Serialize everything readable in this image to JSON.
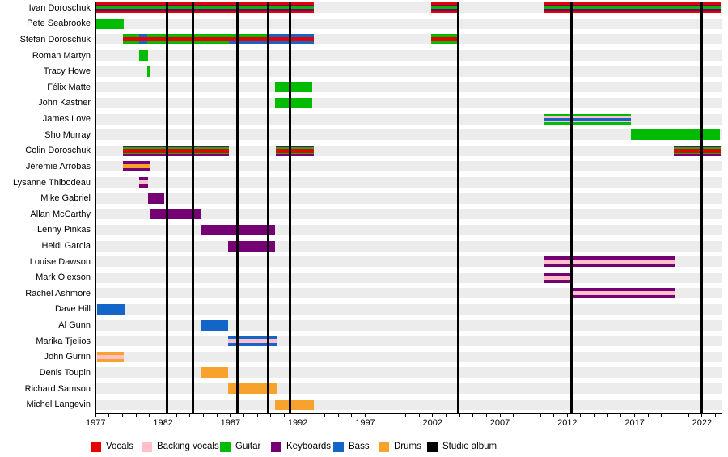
{
  "chart_data": {
    "type": "timeline",
    "x_axis": {
      "start_year": 1977,
      "end_year": 2023.5,
      "minor_tick_interval": 1,
      "labeled_years": [
        1977,
        1982,
        1987,
        1992,
        1997,
        2002,
        2007,
        2012,
        2017,
        2022
      ]
    },
    "roles": {
      "vocals": "#e60000",
      "backing_vocals": "#ffc0cb",
      "guitar": "#00bb00",
      "keyboards": "#740074",
      "bass": "#1465c8",
      "drums": "#f7a22d",
      "studio_album": "#000000"
    },
    "legend": [
      {
        "label": "Vocals",
        "role": "vocals"
      },
      {
        "label": "Backing vocals",
        "role": "backing_vocals"
      },
      {
        "label": "Guitar",
        "role": "guitar"
      },
      {
        "label": "Keyboards",
        "role": "keyboards"
      },
      {
        "label": "Bass",
        "role": "bass"
      },
      {
        "label": "Drums",
        "role": "drums"
      },
      {
        "label": "Studio album",
        "role": "studio_album"
      }
    ],
    "studio_album_years": [
      1982.3,
      1984.2,
      1987.5,
      1989.8,
      1991.4,
      2003.9,
      2012.3,
      2022.0
    ],
    "members": [
      {
        "name": "Ivan Doroschuk",
        "bars": [
          {
            "start": 1977.05,
            "end": 1993.2,
            "stripes": [
              [
                "vocals",
                3
              ],
              [
                "keyboards",
                2
              ],
              [
                "guitar",
                3
              ],
              [
                "keyboards",
                2
              ],
              [
                "vocals",
                3
              ]
            ]
          },
          {
            "start": 2001.9,
            "end": 2003.9,
            "stripes": [
              [
                "vocals",
                3
              ],
              [
                "keyboards",
                2
              ],
              [
                "guitar",
                3
              ],
              [
                "keyboards",
                2
              ],
              [
                "vocals",
                3
              ]
            ]
          },
          {
            "start": 2010.25,
            "end": 2023.4,
            "stripes": [
              [
                "vocals",
                3
              ],
              [
                "keyboards",
                2
              ],
              [
                "guitar",
                3
              ],
              [
                "keyboards",
                2
              ],
              [
                "vocals",
                3
              ]
            ]
          }
        ]
      },
      {
        "name": "Pete Seabrooke",
        "bars": [
          {
            "start": 1977.05,
            "end": 1979.1,
            "stripes": [
              [
                "guitar",
                1
              ]
            ]
          }
        ]
      },
      {
        "name": "Stefan Doroschuk",
        "bars": [
          {
            "start": 1979.0,
            "end": 1980.2,
            "stripes": [
              [
                "guitar",
                4
              ],
              [
                "vocals",
                5
              ],
              [
                "guitar",
                4
              ]
            ]
          },
          {
            "start": 1980.2,
            "end": 1980.85,
            "stripes": [
              [
                "bass",
                4
              ],
              [
                "vocals",
                5
              ],
              [
                "bass",
                4
              ]
            ]
          },
          {
            "start": 1980.85,
            "end": 1986.9,
            "stripes": [
              [
                "guitar",
                4
              ],
              [
                "vocals",
                5
              ],
              [
                "guitar",
                4
              ]
            ]
          },
          {
            "start": 1986.9,
            "end": 1989.9,
            "stripes": [
              [
                "guitar",
                4
              ],
              [
                "vocals",
                5
              ],
              [
                "bass",
                4
              ]
            ]
          },
          {
            "start": 1989.9,
            "end": 1993.2,
            "stripes": [
              [
                "bass",
                4
              ],
              [
                "vocals",
                5
              ],
              [
                "bass",
                4
              ]
            ]
          },
          {
            "start": 2001.9,
            "end": 2003.9,
            "stripes": [
              [
                "guitar",
                4
              ],
              [
                "vocals",
                5
              ],
              [
                "guitar",
                4
              ]
            ]
          }
        ]
      },
      {
        "name": "Roman Martyn",
        "bars": [
          {
            "start": 1980.2,
            "end": 1980.9,
            "stripes": [
              [
                "guitar",
                1
              ]
            ]
          }
        ]
      },
      {
        "name": "Tracy Howe",
        "bars": [
          {
            "start": 1980.85,
            "end": 1981.0,
            "stripes": [
              [
                "guitar",
                1
              ]
            ]
          }
        ]
      },
      {
        "name": "Félix Matte",
        "bars": [
          {
            "start": 1990.3,
            "end": 1993.1,
            "stripes": [
              [
                "guitar",
                1
              ]
            ]
          }
        ]
      },
      {
        "name": "John Kastner",
        "bars": [
          {
            "start": 1990.3,
            "end": 1993.1,
            "stripes": [
              [
                "guitar",
                1
              ]
            ]
          }
        ]
      },
      {
        "name": "James Love",
        "bars": [
          {
            "start": 2010.25,
            "end": 2016.7,
            "stripes": [
              [
                "guitar",
                3
              ],
              [
                "backing_vocals",
                2
              ],
              [
                "bass",
                3
              ],
              [
                "backing_vocals",
                2
              ],
              [
                "guitar",
                3
              ]
            ]
          }
        ]
      },
      {
        "name": "Sho Murray",
        "bars": [
          {
            "start": 2016.7,
            "end": 2023.35,
            "stripes": [
              [
                "guitar",
                1
              ]
            ]
          }
        ]
      },
      {
        "name": "Colin Doroschuk",
        "bars": [
          {
            "start": 1979.0,
            "end": 1986.9,
            "stripes": [
              [
                "keyboards",
                2
              ],
              [
                "guitar",
                2
              ],
              [
                "vocals",
                5
              ],
              [
                "guitar",
                2
              ],
              [
                "keyboards",
                2
              ]
            ]
          },
          {
            "start": 1990.35,
            "end": 1993.2,
            "stripes": [
              [
                "keyboards",
                2
              ],
              [
                "guitar",
                2
              ],
              [
                "vocals",
                5
              ],
              [
                "guitar",
                2
              ],
              [
                "keyboards",
                2
              ]
            ]
          },
          {
            "start": 2019.9,
            "end": 2023.4,
            "stripes": [
              [
                "keyboards",
                2
              ],
              [
                "guitar",
                2
              ],
              [
                "vocals",
                5
              ],
              [
                "guitar",
                2
              ],
              [
                "keyboards",
                2
              ]
            ]
          }
        ]
      },
      {
        "name": "Jérémie Arrobas",
        "bars": [
          {
            "start": 1979.0,
            "end": 1981.0,
            "stripes": [
              [
                "keyboards",
                4
              ],
              [
                "drums",
                5
              ],
              [
                "keyboards",
                4
              ]
            ]
          }
        ]
      },
      {
        "name": "Lysanne Thibodeau",
        "bars": [
          {
            "start": 1980.2,
            "end": 1980.9,
            "stripes": [
              [
                "keyboards",
                4
              ],
              [
                "backing_vocals",
                5
              ],
              [
                "keyboards",
                4
              ]
            ]
          }
        ]
      },
      {
        "name": "Mike Gabriel",
        "bars": [
          {
            "start": 1980.9,
            "end": 1982.1,
            "stripes": [
              [
                "keyboards",
                1
              ]
            ]
          }
        ]
      },
      {
        "name": "Allan McCarthy",
        "bars": [
          {
            "start": 1981.0,
            "end": 1984.8,
            "stripes": [
              [
                "keyboards",
                1
              ]
            ]
          }
        ]
      },
      {
        "name": "Lenny Pinkas",
        "bars": [
          {
            "start": 1984.8,
            "end": 1990.3,
            "stripes": [
              [
                "keyboards",
                1
              ]
            ]
          }
        ]
      },
      {
        "name": "Heidi Garcia",
        "bars": [
          {
            "start": 1986.8,
            "end": 1990.3,
            "stripes": [
              [
                "keyboards",
                1
              ]
            ]
          }
        ]
      },
      {
        "name": "Louise Dawson",
        "bars": [
          {
            "start": 2010.25,
            "end": 2019.95,
            "stripes": [
              [
                "keyboards",
                4
              ],
              [
                "backing_vocals",
                5
              ],
              [
                "keyboards",
                4
              ]
            ]
          }
        ]
      },
      {
        "name": "Mark Olexson",
        "bars": [
          {
            "start": 2010.25,
            "end": 2012.3,
            "stripes": [
              [
                "keyboards",
                4
              ],
              [
                "backing_vocals",
                5
              ],
              [
                "keyboards",
                4
              ]
            ]
          }
        ]
      },
      {
        "name": "Rachel Ashmore",
        "bars": [
          {
            "start": 2012.3,
            "end": 2019.95,
            "stripes": [
              [
                "keyboards",
                4
              ],
              [
                "backing_vocals",
                5
              ],
              [
                "keyboards",
                4
              ]
            ]
          }
        ]
      },
      {
        "name": "Dave Hill",
        "bars": [
          {
            "start": 1977.1,
            "end": 1979.15,
            "stripes": [
              [
                "bass",
                1
              ]
            ]
          }
        ]
      },
      {
        "name": "Al Gunn",
        "bars": [
          {
            "start": 1984.8,
            "end": 1986.8,
            "stripes": [
              [
                "bass",
                1
              ]
            ]
          }
        ]
      },
      {
        "name": "Marika Tjelios",
        "bars": [
          {
            "start": 1986.8,
            "end": 1990.4,
            "stripes": [
              [
                "bass",
                4
              ],
              [
                "backing_vocals",
                5
              ],
              [
                "bass",
                4
              ]
            ]
          }
        ]
      },
      {
        "name": "John Gurrin",
        "bars": [
          {
            "start": 1977.1,
            "end": 1979.1,
            "stripes": [
              [
                "drums",
                4
              ],
              [
                "backing_vocals",
                5
              ],
              [
                "drums",
                4
              ]
            ]
          }
        ]
      },
      {
        "name": "Denis Toupin",
        "bars": [
          {
            "start": 1984.8,
            "end": 1986.85,
            "stripes": [
              [
                "drums",
                1
              ]
            ]
          }
        ]
      },
      {
        "name": "Richard Samson",
        "bars": [
          {
            "start": 1986.8,
            "end": 1990.4,
            "stripes": [
              [
                "drums",
                1
              ]
            ]
          }
        ]
      },
      {
        "name": "Michel Langevin",
        "bars": [
          {
            "start": 1990.3,
            "end": 1993.2,
            "stripes": [
              [
                "drums",
                1
              ]
            ]
          }
        ]
      }
    ]
  }
}
